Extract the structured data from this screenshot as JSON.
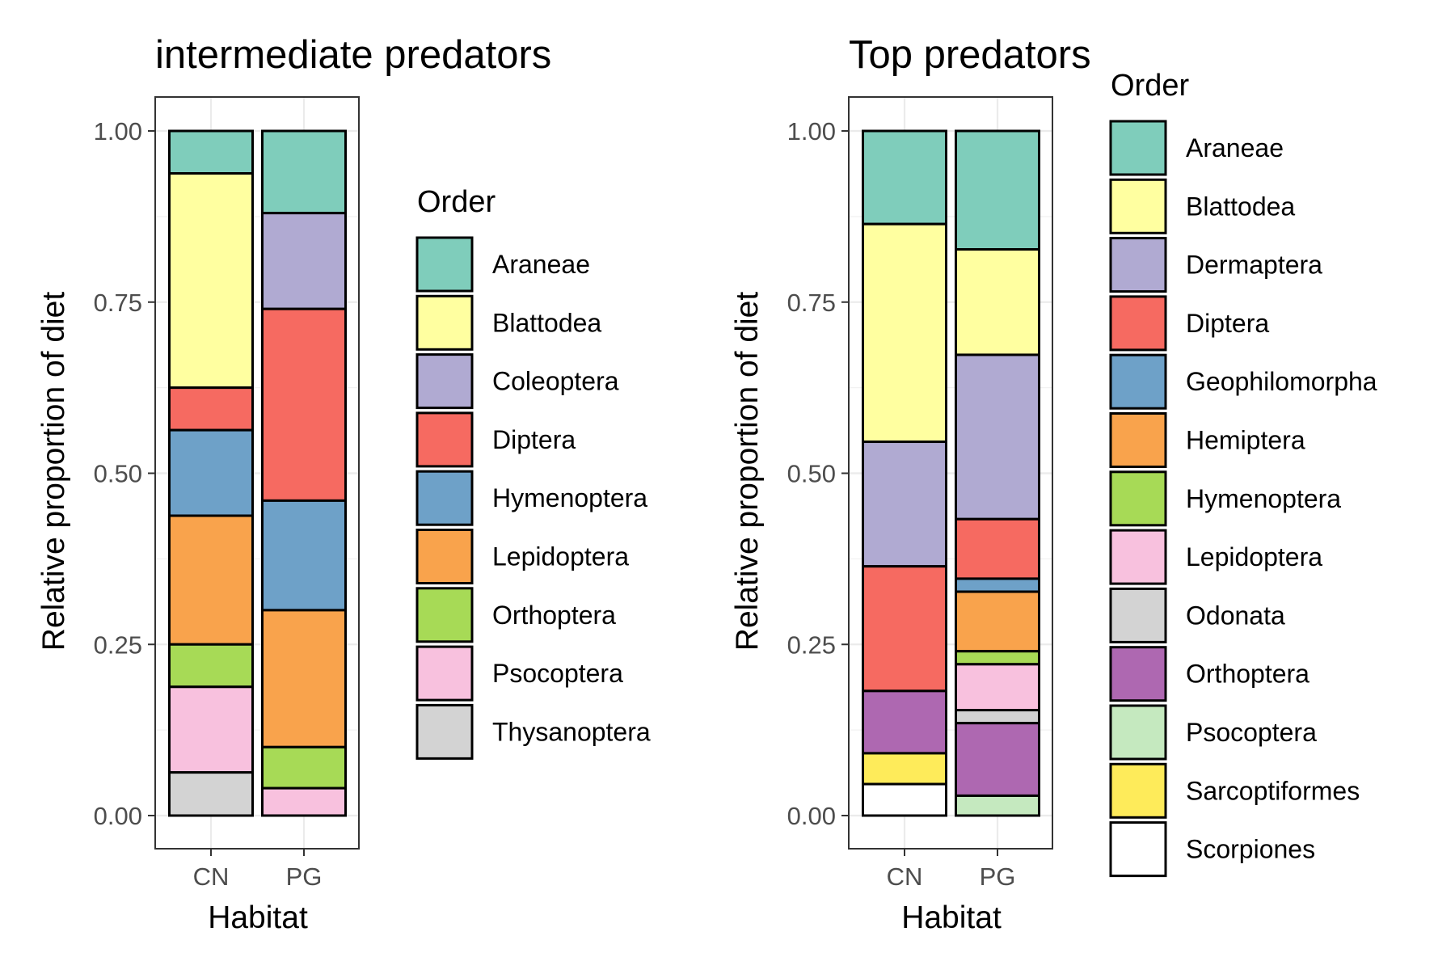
{
  "chart_data": [
    {
      "type": "bar",
      "stacked": true,
      "title": "intermediate predators",
      "xlabel": "Habitat",
      "ylabel": "Relative proportion of diet",
      "ylim": [
        0,
        1
      ],
      "yticks": [
        "0.00",
        "0.25",
        "0.50",
        "0.75",
        "1.00"
      ],
      "grid": true,
      "legend_title": "Order",
      "legend_position": "right",
      "categories": [
        "CN",
        "PG"
      ],
      "series": [
        {
          "name": "Araneae",
          "color": "#7FCDBB",
          "values": [
            0.062,
            0.12
          ]
        },
        {
          "name": "Blattodea",
          "color": "#FFFFA0",
          "values": [
            0.313,
            0.0
          ]
        },
        {
          "name": "Coleoptera",
          "color": "#B0AAD2",
          "values": [
            0.0,
            0.14
          ]
        },
        {
          "name": "Diptera",
          "color": "#F66A61",
          "values": [
            0.062,
            0.28
          ]
        },
        {
          "name": "Hymenoptera",
          "color": "#6EA1C8",
          "values": [
            0.125,
            0.16
          ]
        },
        {
          "name": "Lepidoptera",
          "color": "#F9A34C",
          "values": [
            0.188,
            0.2
          ]
        },
        {
          "name": "Orthoptera",
          "color": "#A7DA56",
          "values": [
            0.062,
            0.06
          ]
        },
        {
          "name": "Psocoptera",
          "color": "#F8C1DE",
          "values": [
            0.125,
            0.04
          ]
        },
        {
          "name": "Thysanoptera",
          "color": "#D3D3D3",
          "values": [
            0.063,
            0.0
          ]
        }
      ]
    },
    {
      "type": "bar",
      "stacked": true,
      "title": "Top predators",
      "xlabel": "Habitat",
      "ylabel": "Relative proportion of diet",
      "ylim": [
        0,
        1
      ],
      "yticks": [
        "0.00",
        "0.25",
        "0.50",
        "0.75",
        "1.00"
      ],
      "grid": true,
      "legend_title": "Order",
      "legend_position": "right",
      "categories": [
        "CN",
        "PG"
      ],
      "series": [
        {
          "name": "Araneae",
          "color": "#7FCDBB",
          "values": [
            0.136,
            0.173
          ]
        },
        {
          "name": "Blattodea",
          "color": "#FFFFA0",
          "values": [
            0.318,
            0.154
          ]
        },
        {
          "name": "Dermaptera",
          "color": "#B0AAD2",
          "values": [
            0.182,
            0.24
          ]
        },
        {
          "name": "Diptera",
          "color": "#F66A61",
          "values": [
            0.182,
            0.087
          ]
        },
        {
          "name": "Geophilomorpha",
          "color": "#6EA1C8",
          "values": [
            0.0,
            0.019
          ]
        },
        {
          "name": "Hemiptera",
          "color": "#F9A34C",
          "values": [
            0.0,
            0.087
          ]
        },
        {
          "name": "Hymenoptera",
          "color": "#A7DA56",
          "values": [
            0.0,
            0.019
          ]
        },
        {
          "name": "Lepidoptera",
          "color": "#F8C1DE",
          "values": [
            0.0,
            0.067
          ]
        },
        {
          "name": "Odonata",
          "color": "#D3D3D3",
          "values": [
            0.0,
            0.019
          ]
        },
        {
          "name": "Orthoptera",
          "color": "#AE68B1",
          "values": [
            0.091,
            0.106
          ]
        },
        {
          "name": "Psocoptera",
          "color": "#C5E9BF",
          "values": [
            0.0,
            0.029
          ]
        },
        {
          "name": "Sarcoptiformes",
          "color": "#FEEB5A",
          "values": [
            0.045,
            0.0
          ]
        },
        {
          "name": "Scorpiones",
          "color": "#FFFFFF",
          "values": [
            0.046,
            0.0
          ]
        }
      ]
    }
  ]
}
